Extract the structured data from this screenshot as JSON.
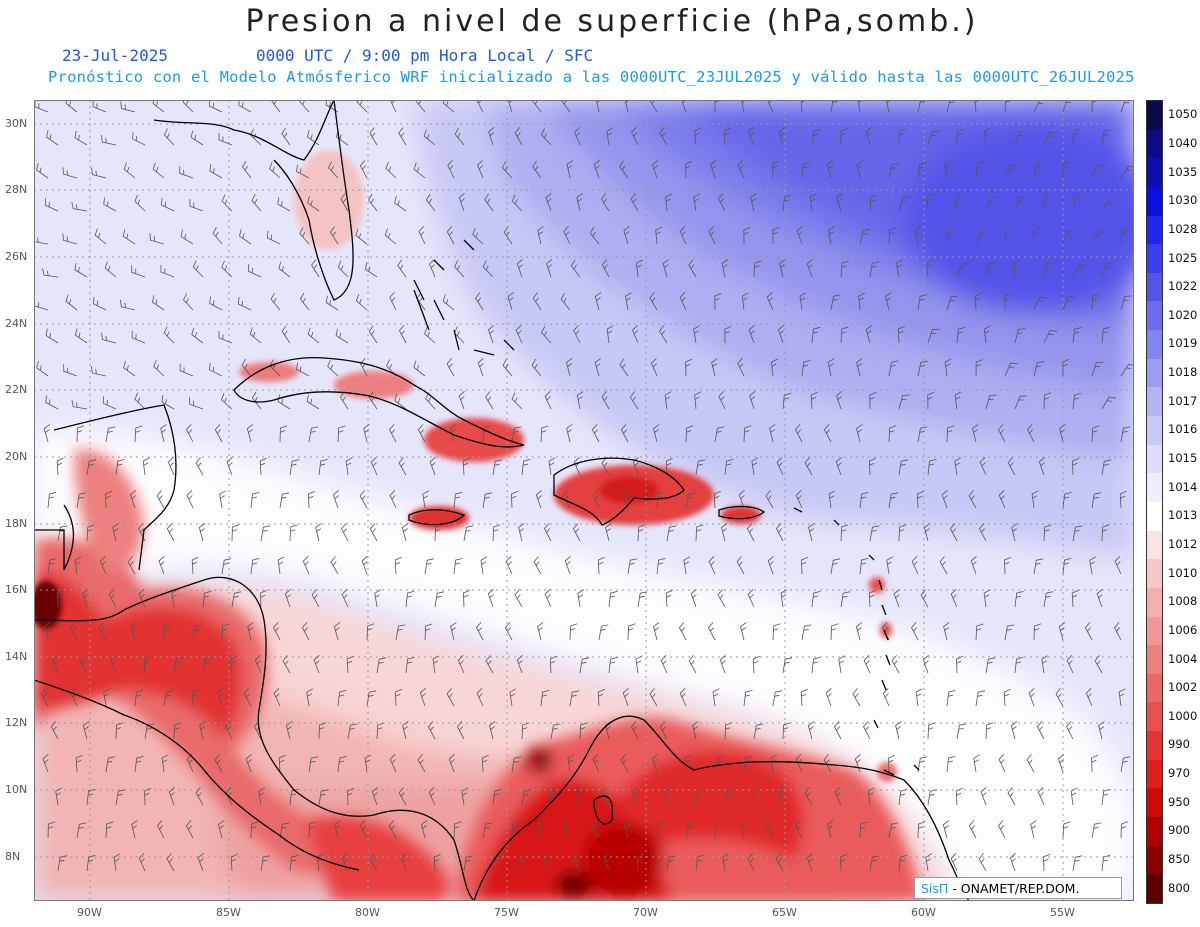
{
  "header": {
    "title": "Presion a nivel de superficie (hPa,somb.)",
    "date": "23-Jul-2025",
    "time_info": "0000 UTC / 9:00 pm Hora Local / SFC",
    "forecast_info": "Pronóstico con el Modelo Atmósferico WRF inicializado a las 0000UTC_23JUL2025 y válido hasta las  0000UTC_26JUL2025"
  },
  "map": {
    "lon_labels": [
      "90W",
      "85W",
      "80W",
      "75W",
      "70W",
      "65W",
      "60W",
      "55W"
    ],
    "lat_labels": [
      "30N",
      "28N",
      "26N",
      "24N",
      "22N",
      "20N",
      "18N",
      "16N",
      "14N",
      "12N",
      "10N",
      "8N"
    ]
  },
  "colorbar": {
    "levels": [
      "1050",
      "1040",
      "1035",
      "1030",
      "1028",
      "1025",
      "1022",
      "1020",
      "1019",
      "1018",
      "1017",
      "1016",
      "1015",
      "1014",
      "1013",
      "1012",
      "1010",
      "1008",
      "1006",
      "1004",
      "1002",
      "1000",
      "990",
      "970",
      "950",
      "900",
      "850",
      "800"
    ],
    "colors": [
      "#0a0a4a",
      "#0b0b8a",
      "#0c0cb0",
      "#0d0de0",
      "#2424f2",
      "#3c3cee",
      "#5454ea",
      "#6c6cec",
      "#8484ee",
      "#9c9cf2",
      "#b4b4f4",
      "#cacaf8",
      "#dedefa",
      "#eeeefc",
      "#ffffff",
      "#fce2e2",
      "#f8c8c8",
      "#f4b0b0",
      "#f09898",
      "#ec8080",
      "#ea6868",
      "#e85050",
      "#e63434",
      "#e01c1c",
      "#d00808",
      "#b00000",
      "#880000",
      "#5a0000"
    ]
  },
  "credit": {
    "brand": "SisΠ",
    "text": "- ONAMET/REP.DOM."
  }
}
